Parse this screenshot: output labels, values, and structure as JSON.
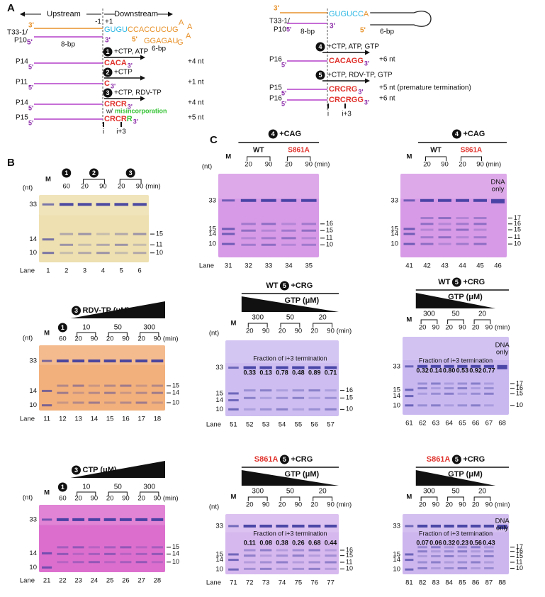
{
  "panel_a": {
    "label": "A",
    "primes": {
      "five": "5'",
      "three": "3'"
    },
    "left": {
      "upstream": "Upstream",
      "downstream": "Downstream",
      "minus1": "-1",
      "plus1": "+1",
      "template": [
        "T33-1/",
        "P10"
      ],
      "seq_cyan": "GUGU",
      "seq_orange": "CCACCUCUG",
      "loop": [
        "A",
        "A",
        "A"
      ],
      "seq_lower": "GGAGAU",
      "g": "G",
      "bp8": "8-bp",
      "bp6": "6-bp",
      "steps": [
        {
          "num": "1",
          "cond": "+CTP, ATP",
          "products": [
            {
              "product": "P14",
              "seq": "CACA",
              "result": "+4 nt"
            }
          ]
        },
        {
          "num": "2",
          "cond": "+CTP",
          "products": [
            {
              "product": "P11",
              "seq": "C",
              "result": "+1 nt"
            }
          ]
        },
        {
          "num": "3",
          "cond": "+CTP, RDV-TP",
          "products": [
            {
              "product": "P14",
              "seq": "CRCR",
              "result": "+4 nt"
            }
          ]
        }
      ],
      "misinc": {
        "prefix": "w/",
        "word": "misincorporation",
        "product": "P15",
        "seq": "CRCR",
        "seq_green": "R",
        "result": "+5 nt"
      },
      "i": "i",
      "i3": "i+3"
    },
    "right": {
      "template": [
        "T33-1/",
        "P10"
      ],
      "seq_cyan": "GUGUCC",
      "seq_orange": "A",
      "bp8": "8-bp",
      "bp6": "6-bp",
      "steps": [
        {
          "num": "4",
          "cond": "+CTP, ATP, GTP",
          "products": [
            {
              "product": "P16",
              "seq": "CACAGG",
              "result": "+6 nt"
            }
          ]
        },
        {
          "num": "5",
          "cond": "+CTP, RDV-TP, GTP",
          "products": [
            {
              "product": "P15",
              "seq": "CRCRG",
              "result": "+5 nt (premature termination)"
            },
            {
              "product": "P16",
              "seq": "CRCRGG",
              "result": "+6 nt"
            }
          ]
        }
      ],
      "i": "i",
      "i3": "i+3"
    }
  },
  "panel_b": {
    "label": "B",
    "gels": [
      {
        "pre_step": "1",
        "brackets": [
          "2",
          "3"
        ],
        "times": [
          "60",
          "20",
          "90",
          "20",
          "90"
        ],
        "min": "(min)",
        "M": "M",
        "nt": "(nt)",
        "left": [
          "33",
          "14",
          "10"
        ],
        "right": [
          "15",
          "11",
          "10"
        ],
        "lane_label": "Lane",
        "lanes": [
          "1",
          "2",
          "3",
          "4",
          "5",
          "6"
        ]
      },
      {
        "pre_step": "1",
        "ramp": {
          "num": "3",
          "label": "RDV-TP (μM)"
        },
        "brackets": [
          "10",
          "50",
          "300"
        ],
        "times": [
          "60",
          "20",
          "90",
          "20",
          "90",
          "20",
          "90"
        ],
        "min": "(min)",
        "M": "M",
        "nt": "(nt)",
        "left": [
          "33",
          "14",
          "10"
        ],
        "right": [
          "15",
          "14",
          "10"
        ],
        "lane_label": "Lane",
        "lanes": [
          "11",
          "12",
          "13",
          "14",
          "15",
          "16",
          "17",
          "18"
        ]
      },
      {
        "pre_step": "1",
        "ramp": {
          "num": "3",
          "label": "CTP (μM)"
        },
        "brackets": [
          "10",
          "50",
          "300"
        ],
        "times": [
          "60",
          "20",
          "90",
          "20",
          "90",
          "20",
          "90"
        ],
        "min": "(min)",
        "M": "M",
        "nt": "(nt)",
        "left": [
          "33",
          "14",
          "10"
        ],
        "right": [
          "15",
          "14",
          "10"
        ],
        "lane_label": "Lane",
        "lanes": [
          "21",
          "22",
          "23",
          "24",
          "25",
          "26",
          "27",
          "28"
        ]
      }
    ]
  },
  "panel_c": {
    "label": "C",
    "gels": [
      {
        "condition": {
          "num": "4",
          "label": "+CAG"
        },
        "brackets": [
          "WT",
          "S861A"
        ],
        "bracket_colors": [
          "#111111",
          "#e0312b"
        ],
        "times": [
          "20",
          "90",
          "20",
          "90"
        ],
        "min": "(min)",
        "M": "M",
        "nt": "(nt)",
        "left": [
          "33",
          "15",
          "14",
          "10"
        ],
        "right": [
          "16",
          "15",
          "11",
          "10"
        ],
        "lane_label": "Lane",
        "lanes": [
          "31",
          "32",
          "33",
          "34",
          "35"
        ]
      },
      {
        "condition": {
          "num": "4",
          "label": "+CAG"
        },
        "brackets": [
          "WT",
          "S861A"
        ],
        "bracket_colors": [
          "#111111",
          "#e0312b"
        ],
        "times": [
          "20",
          "90",
          "20",
          "90"
        ],
        "min": "(min)",
        "M": "M",
        "dna_only": [
          "DNA",
          "only"
        ],
        "left": [
          "33",
          "15",
          "14",
          "10"
        ],
        "right": [
          "17",
          "16",
          "15",
          "11",
          "10"
        ],
        "lanes": [
          "41",
          "42",
          "43",
          "44",
          "45",
          "46"
        ]
      },
      {
        "condition": {
          "prefix": "WT",
          "num": "5",
          "label": "+CRG"
        },
        "ramp": {
          "label": "GTP (μM)"
        },
        "brackets": [
          "300",
          "50",
          "20"
        ],
        "times": [
          "20",
          "90",
          "20",
          "90",
          "20",
          "90"
        ],
        "min": "(min)",
        "M": "M",
        "nt": "(nt)",
        "fraction_title": "Fraction of i+3 termination",
        "fractions": [
          "0.33",
          "0.13",
          "0.78",
          "0.48",
          "0.89",
          "0.71"
        ],
        "left": [
          "33",
          "15",
          "14",
          "10"
        ],
        "right": [
          "16",
          "15",
          "10"
        ],
        "lane_label": "Lane",
        "lanes": [
          "51",
          "52",
          "53",
          "54",
          "55",
          "56",
          "57"
        ]
      },
      {
        "condition": {
          "prefix": "WT",
          "num": "5",
          "label": "+CRG"
        },
        "ramp": {
          "label": "GTP (μM)"
        },
        "brackets": [
          "300",
          "50",
          "20"
        ],
        "times": [
          "20",
          "90",
          "20",
          "90",
          "20",
          "90"
        ],
        "min": "(min)",
        "M": "M",
        "dna_only": [
          "DNA",
          "only"
        ],
        "fraction_title": "Fraction of i+3 termination",
        "fractions": [
          "0.32",
          "0.14",
          "0.80",
          "0.53",
          "0.92",
          "0.77"
        ],
        "left": [
          "33",
          "15",
          "14",
          "10"
        ],
        "right": [
          "17",
          "16",
          "15",
          "10"
        ],
        "lanes": [
          "61",
          "62",
          "63",
          "64",
          "65",
          "66",
          "67",
          "68"
        ]
      },
      {
        "condition": {
          "prefix": "S861A",
          "prefix_color": "#e0312b",
          "num": "5",
          "label": "+CRG"
        },
        "ramp": {
          "label": "GTP (μM)"
        },
        "brackets": [
          "300",
          "50",
          "20"
        ],
        "times": [
          "20",
          "90",
          "20",
          "90",
          "20",
          "90"
        ],
        "min": "(min)",
        "M": "M",
        "nt": "(nt)",
        "fraction_title": "Fraction of i+3 termination",
        "fractions": [
          "0.11",
          "0.08",
          "0.38",
          "0.26",
          "0.68",
          "0.44"
        ],
        "left": [
          "33",
          "15",
          "14",
          "10"
        ],
        "right": [
          "16",
          "15",
          "11",
          "10"
        ],
        "lane_label": "Lane",
        "lanes": [
          "71",
          "72",
          "73",
          "74",
          "75",
          "76",
          "77"
        ]
      },
      {
        "condition": {
          "prefix": "S861A",
          "prefix_color": "#e0312b",
          "num": "5",
          "label": "+CRG"
        },
        "ramp": {
          "label": "GTP (μM)"
        },
        "brackets": [
          "300",
          "50",
          "20"
        ],
        "times": [
          "20",
          "90",
          "20",
          "90",
          "20",
          "90"
        ],
        "min": "(min)",
        "M": "M",
        "dna_only": [
          "DNA",
          "only"
        ],
        "fraction_title": "Fraction of i+3 termination",
        "fractions": [
          "0.07",
          "0.06",
          "0.32",
          "0.23",
          "0.56",
          "0.43"
        ],
        "left": [
          "33",
          "15",
          "14",
          "10"
        ],
        "right": [
          "17",
          "16",
          "15",
          "11",
          "10"
        ],
        "lanes": [
          "81",
          "82",
          "83",
          "84",
          "85",
          "86",
          "87",
          "88"
        ]
      }
    ]
  }
}
